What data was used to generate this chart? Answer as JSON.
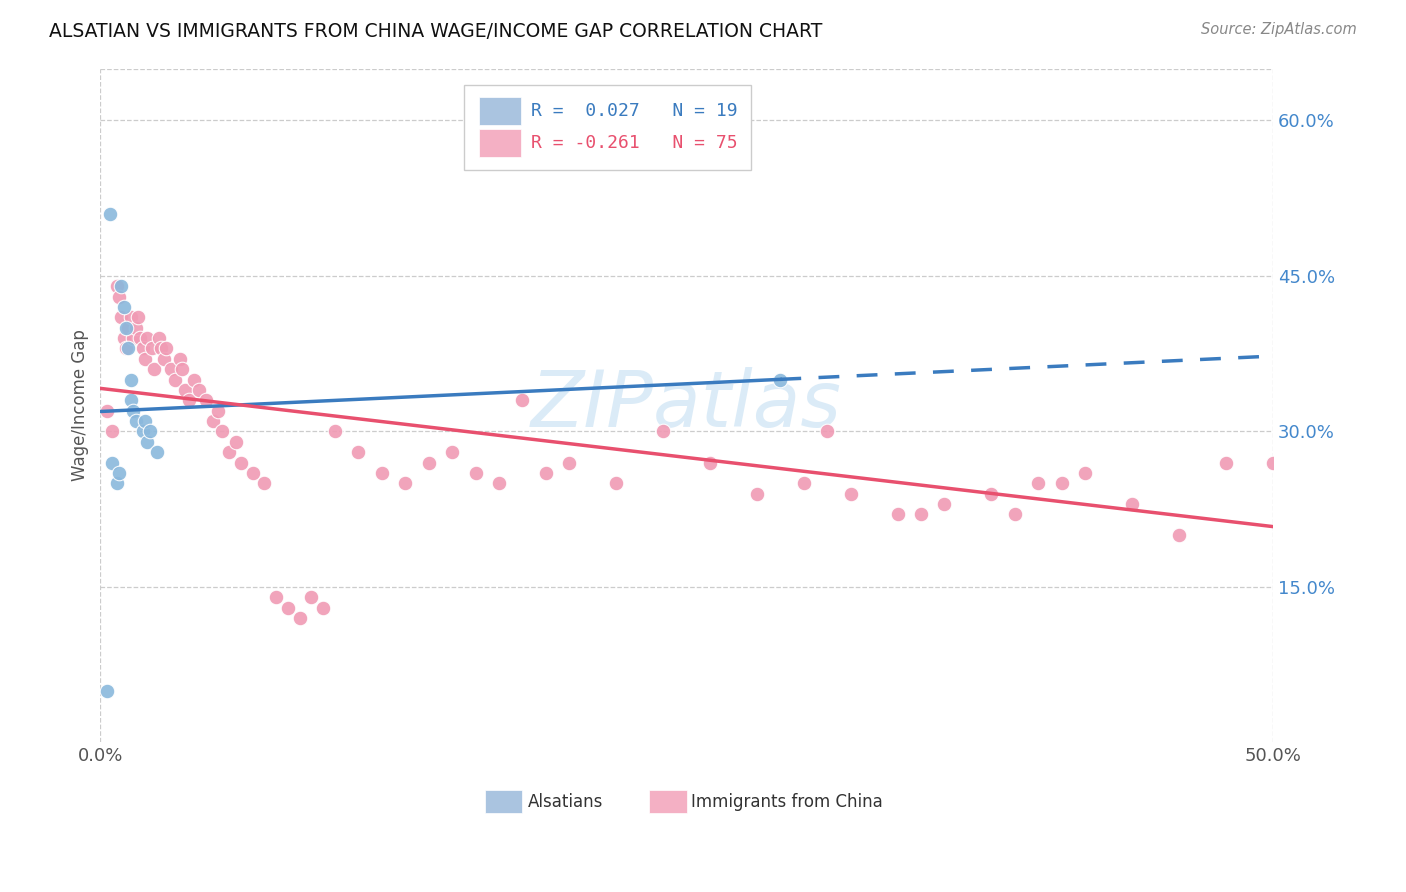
{
  "title": "ALSATIAN VS IMMIGRANTS FROM CHINA WAGE/INCOME GAP CORRELATION CHART",
  "source": "Source: ZipAtlas.com",
  "ylabel": "Wage/Income Gap",
  "x_min": 0.0,
  "x_max": 0.5,
  "y_min": 0.0,
  "y_max": 0.65,
  "y_ticks_right": [
    0.15,
    0.3,
    0.45,
    0.6
  ],
  "y_tick_labels_right": [
    "15.0%",
    "30.0%",
    "45.0%",
    "60.0%"
  ],
  "legend_color1": "#aac4e0",
  "legend_color2": "#f4b0c4",
  "watermark": "ZIPatlas",
  "alsatian_scatter_color": "#8ab8dc",
  "china_scatter_color": "#f09ab4",
  "alsatian_line_color": "#3a7bbf",
  "china_line_color": "#e8506e",
  "alsatian_x": [
    0.004,
    0.009,
    0.01,
    0.011,
    0.012,
    0.013,
    0.013,
    0.014,
    0.015,
    0.018,
    0.019,
    0.02,
    0.021,
    0.024,
    0.005,
    0.007,
    0.008,
    0.29,
    0.003
  ],
  "alsatian_y": [
    0.51,
    0.44,
    0.42,
    0.4,
    0.38,
    0.35,
    0.33,
    0.32,
    0.31,
    0.3,
    0.31,
    0.29,
    0.3,
    0.28,
    0.27,
    0.25,
    0.26,
    0.35,
    0.05
  ],
  "china_x": [
    0.003,
    0.005,
    0.007,
    0.008,
    0.009,
    0.01,
    0.011,
    0.012,
    0.013,
    0.014,
    0.015,
    0.016,
    0.017,
    0.018,
    0.019,
    0.02,
    0.022,
    0.023,
    0.025,
    0.026,
    0.027,
    0.028,
    0.03,
    0.032,
    0.034,
    0.035,
    0.036,
    0.038,
    0.04,
    0.042,
    0.045,
    0.048,
    0.05,
    0.052,
    0.055,
    0.058,
    0.06,
    0.065,
    0.07,
    0.075,
    0.08,
    0.085,
    0.09,
    0.095,
    0.1,
    0.11,
    0.12,
    0.13,
    0.14,
    0.15,
    0.16,
    0.17,
    0.18,
    0.19,
    0.2,
    0.22,
    0.24,
    0.26,
    0.28,
    0.3,
    0.32,
    0.34,
    0.36,
    0.38,
    0.4,
    0.42,
    0.44,
    0.46,
    0.48,
    0.5,
    0.25,
    0.31,
    0.35,
    0.39,
    0.41
  ],
  "china_y": [
    0.32,
    0.3,
    0.44,
    0.43,
    0.41,
    0.39,
    0.38,
    0.4,
    0.41,
    0.39,
    0.4,
    0.41,
    0.39,
    0.38,
    0.37,
    0.39,
    0.38,
    0.36,
    0.39,
    0.38,
    0.37,
    0.38,
    0.36,
    0.35,
    0.37,
    0.36,
    0.34,
    0.33,
    0.35,
    0.34,
    0.33,
    0.31,
    0.32,
    0.3,
    0.28,
    0.29,
    0.27,
    0.26,
    0.25,
    0.14,
    0.13,
    0.12,
    0.14,
    0.13,
    0.3,
    0.28,
    0.26,
    0.25,
    0.27,
    0.28,
    0.26,
    0.25,
    0.33,
    0.26,
    0.27,
    0.25,
    0.3,
    0.27,
    0.24,
    0.25,
    0.24,
    0.22,
    0.23,
    0.24,
    0.25,
    0.26,
    0.23,
    0.2,
    0.27,
    0.27,
    0.6,
    0.3,
    0.22,
    0.22,
    0.25
  ]
}
